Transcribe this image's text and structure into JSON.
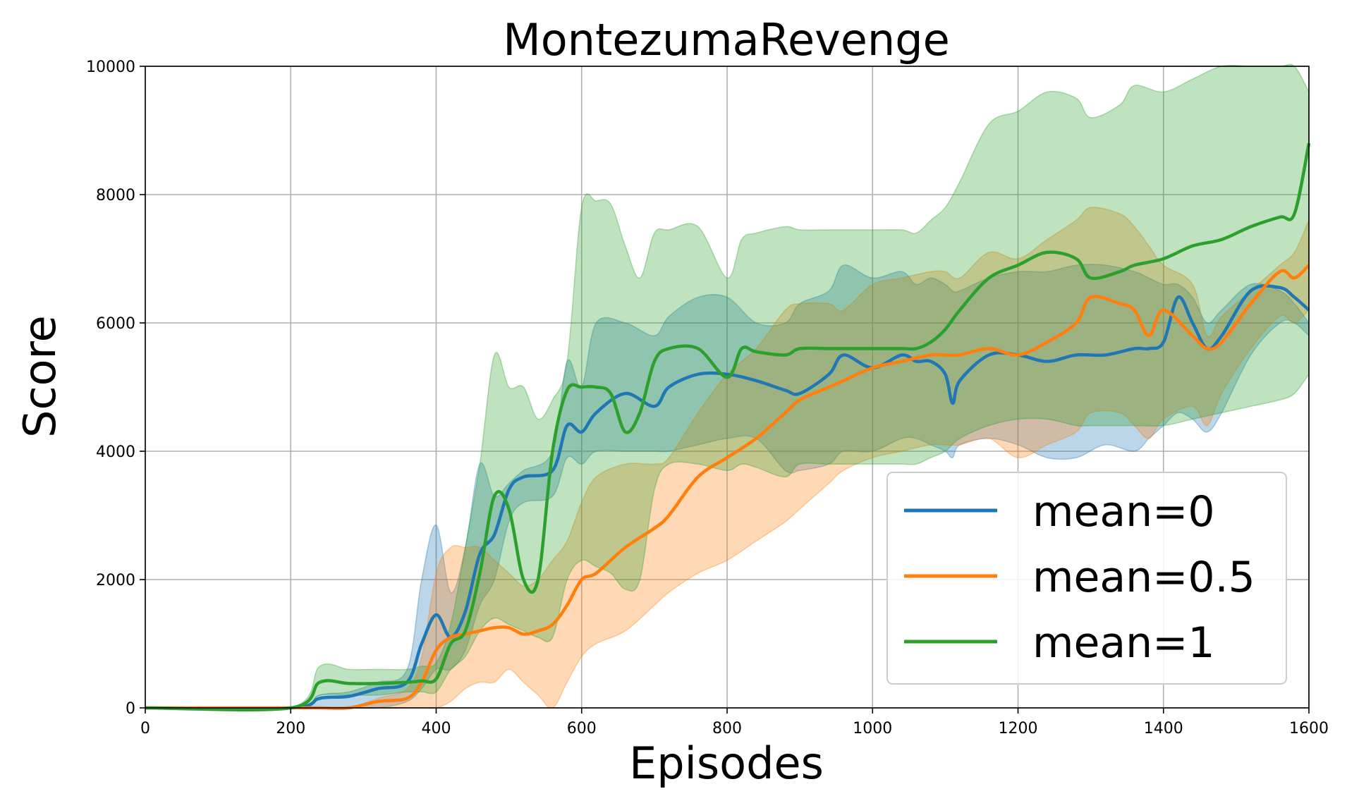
{
  "chart_data": {
    "type": "line",
    "title": "MontezumaRevenge",
    "xlabel": "Episodes",
    "ylabel": "Score",
    "xlim": [
      0,
      1600
    ],
    "ylim": [
      0,
      10000
    ],
    "x_ticks": [
      0,
      200,
      400,
      600,
      800,
      1000,
      1200,
      1400,
      1600
    ],
    "y_ticks": [
      0,
      2000,
      4000,
      6000,
      8000,
      10000
    ],
    "grid": true,
    "legend_position": "lower-right",
    "series": [
      {
        "name": "mean=0",
        "color": "#1f77b4",
        "x": [
          0,
          200,
          240,
          280,
          320,
          360,
          380,
          400,
          420,
          440,
          460,
          480,
          500,
          520,
          560,
          580,
          600,
          620,
          660,
          700,
          720,
          760,
          800,
          840,
          880,
          900,
          940,
          960,
          1000,
          1040,
          1060,
          1080,
          1100,
          1110,
          1120,
          1160,
          1200,
          1240,
          1280,
          1320,
          1360,
          1380,
          1400,
          1420,
          1440,
          1460,
          1480,
          1520,
          1560,
          1580,
          1600
        ],
        "mean": [
          0,
          0,
          150,
          180,
          300,
          400,
          1000,
          1450,
          1100,
          1500,
          2400,
          2700,
          3400,
          3600,
          3700,
          4400,
          4300,
          4600,
          4900,
          4700,
          5000,
          5200,
          5200,
          5100,
          4950,
          4900,
          5200,
          5500,
          5300,
          5500,
          5400,
          5400,
          5200,
          4750,
          5100,
          5500,
          5500,
          5400,
          5500,
          5500,
          5600,
          5600,
          5700,
          6400,
          6000,
          5600,
          5800,
          6500,
          6550,
          6400,
          6200
        ],
        "upper": [
          0,
          0,
          200,
          250,
          400,
          600,
          2000,
          2850,
          1800,
          2500,
          3800,
          3300,
          3500,
          3700,
          4000,
          5400,
          5000,
          6000,
          6000,
          5800,
          6100,
          6400,
          6400,
          6000,
          6000,
          6300,
          6500,
          6900,
          6700,
          6800,
          6600,
          6700,
          6600,
          6500,
          6500,
          6700,
          6800,
          6800,
          6900,
          6900,
          6800,
          6700,
          6600,
          6600,
          6400,
          6000,
          6200,
          6600,
          6500,
          6300,
          6000
        ],
        "lower": [
          0,
          0,
          0,
          0,
          0,
          100,
          300,
          600,
          600,
          900,
          1600,
          2000,
          2900,
          3200,
          3300,
          3900,
          3800,
          4000,
          4000,
          4000,
          4000,
          4100,
          4200,
          4200,
          3700,
          3700,
          3800,
          4000,
          4000,
          4200,
          4200,
          4100,
          4000,
          3900,
          4100,
          4200,
          4100,
          3900,
          3900,
          4100,
          4000,
          4200,
          4400,
          4600,
          4500,
          4300,
          4600,
          5500,
          6000,
          6000,
          5800
        ]
      },
      {
        "name": "mean=0.5",
        "color": "#ff7f0e",
        "x": [
          0,
          200,
          240,
          280,
          320,
          360,
          380,
          400,
          420,
          440,
          460,
          480,
          500,
          520,
          540,
          560,
          580,
          600,
          620,
          660,
          700,
          720,
          760,
          800,
          840,
          880,
          900,
          940,
          960,
          1000,
          1040,
          1080,
          1100,
          1120,
          1160,
          1200,
          1240,
          1280,
          1300,
          1340,
          1360,
          1380,
          1400,
          1440,
          1460,
          1480,
          1520,
          1560,
          1580,
          1600
        ],
        "mean": [
          0,
          0,
          0,
          0,
          100,
          150,
          400,
          900,
          1100,
          1150,
          1200,
          1250,
          1250,
          1150,
          1200,
          1300,
          1600,
          2000,
          2100,
          2500,
          2800,
          3000,
          3600,
          3900,
          4200,
          4600,
          4800,
          5000,
          5100,
          5300,
          5400,
          5500,
          5500,
          5500,
          5600,
          5500,
          5700,
          6000,
          6400,
          6300,
          6200,
          5800,
          6200,
          5800,
          5600,
          5700,
          6300,
          6800,
          6700,
          6900
        ],
        "upper": [
          0,
          0,
          0,
          0,
          150,
          300,
          800,
          2100,
          2500,
          2500,
          2500,
          2300,
          2100,
          1900,
          2000,
          2300,
          2600,
          3200,
          3600,
          3800,
          3800,
          3900,
          4600,
          5200,
          5600,
          6200,
          6300,
          6300,
          6200,
          6600,
          6700,
          6800,
          6800,
          6700,
          7100,
          7000,
          7300,
          7600,
          7800,
          7700,
          7500,
          7200,
          6900,
          6600,
          5800,
          6100,
          6500,
          6900,
          7100,
          7600
        ],
        "lower": [
          0,
          0,
          0,
          0,
          0,
          0,
          0,
          0,
          100,
          300,
          400,
          400,
          600,
          400,
          200,
          0,
          400,
          800,
          1000,
          1200,
          1600,
          1800,
          2100,
          2300,
          2600,
          2900,
          3100,
          3500,
          3700,
          3900,
          4000,
          4100,
          4100,
          4100,
          4200,
          3900,
          4100,
          4300,
          4600,
          4600,
          4400,
          4200,
          4500,
          4700,
          4400,
          4900,
          5600,
          6100,
          6000,
          6200
        ]
      },
      {
        "name": "mean=1",
        "color": "#2ca02c",
        "x": [
          0,
          200,
          240,
          280,
          320,
          360,
          380,
          400,
          420,
          440,
          460,
          480,
          500,
          520,
          540,
          560,
          580,
          600,
          620,
          640,
          660,
          680,
          700,
          720,
          760,
          800,
          820,
          840,
          880,
          900,
          940,
          1000,
          1040,
          1060,
          1080,
          1100,
          1120,
          1160,
          1200,
          1240,
          1280,
          1300,
          1340,
          1360,
          1400,
          1440,
          1480,
          1520,
          1560,
          1580,
          1600
        ],
        "mean": [
          0,
          0,
          400,
          380,
          380,
          400,
          420,
          450,
          1000,
          1200,
          2100,
          3300,
          3100,
          2000,
          2000,
          4000,
          4950,
          5000,
          5000,
          4900,
          4300,
          4600,
          5400,
          5600,
          5600,
          5150,
          5600,
          5550,
          5500,
          5600,
          5600,
          5600,
          5600,
          5600,
          5700,
          5900,
          6200,
          6700,
          6900,
          7100,
          7000,
          6700,
          6800,
          6900,
          7000,
          7200,
          7300,
          7500,
          7650,
          7700,
          8800
        ],
        "upper": [
          0,
          0,
          650,
          600,
          600,
          600,
          650,
          700,
          1300,
          2500,
          3800,
          5500,
          5000,
          5000,
          4500,
          4800,
          5400,
          7800,
          7900,
          7850,
          7200,
          6700,
          7400,
          7450,
          7500,
          6700,
          7300,
          7400,
          7500,
          7450,
          7450,
          7450,
          7450,
          7400,
          7600,
          7800,
          8200,
          9100,
          9300,
          9600,
          9500,
          9200,
          9400,
          9700,
          9600,
          9800,
          10000,
          10000,
          10000,
          10000,
          9600
        ],
        "lower": [
          0,
          0,
          200,
          200,
          200,
          250,
          250,
          250,
          600,
          800,
          1200,
          1400,
          1300,
          1200,
          1100,
          1100,
          2000,
          2300,
          2200,
          2100,
          1850,
          2000,
          3400,
          3800,
          3800,
          3700,
          3800,
          3750,
          3600,
          3800,
          3800,
          3800,
          3800,
          3800,
          3900,
          4000,
          4200,
          4400,
          4500,
          4500,
          4400,
          4400,
          4400,
          4400,
          4400,
          4500,
          4600,
          4700,
          4800,
          4900,
          5200
        ]
      }
    ]
  }
}
